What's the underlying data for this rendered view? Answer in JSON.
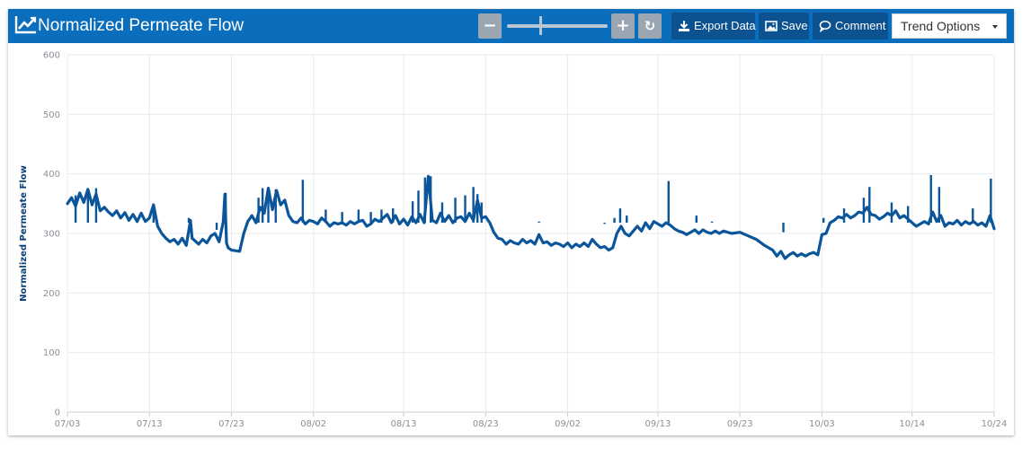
{
  "header": {
    "title": "Normalized Permeate Flow",
    "title_icon": "trend-chart-icon",
    "zoom_out_label": "−",
    "zoom_in_label": "+",
    "reset_label": "↻",
    "export_label": "Export Data",
    "save_label": "Save",
    "comment_label": "Comment",
    "trend_options_label": "Trend Options",
    "colors": {
      "header_bg": "#0a6ebd",
      "button_bg": "#0c5190",
      "button_disabled": "#9aa6b2"
    }
  },
  "chart_data": {
    "type": "line",
    "title": "Normalized Permeate Flow",
    "ylabel": "Normalized Permeate Flow",
    "xlabel": "",
    "ylim": [
      0,
      600
    ],
    "yticks": [
      0,
      100,
      200,
      300,
      400,
      500,
      600
    ],
    "grid": true,
    "legend": "none",
    "x_range_days": [
      0,
      113
    ],
    "x_tick_days": [
      0,
      10,
      20,
      30,
      41,
      51,
      61,
      72,
      82,
      92,
      103,
      113
    ],
    "x_tick_labels": [
      "07/03",
      "07/13",
      "07/23",
      "08/02",
      "08/13",
      "08/23",
      "09/02",
      "09/13",
      "09/23",
      "10/03",
      "10/14",
      "10/24"
    ],
    "series": [
      {
        "name": "Normalized Permeate Flow",
        "color": "#0b559a",
        "points": [
          [
            0,
            350
          ],
          [
            0.5,
            360
          ],
          [
            1,
            346
          ],
          [
            1.5,
            368
          ],
          [
            2,
            352
          ],
          [
            2.5,
            374
          ],
          [
            3,
            348
          ],
          [
            3.5,
            366
          ],
          [
            4,
            338
          ],
          [
            4.5,
            344
          ],
          [
            5,
            336
          ],
          [
            5.5,
            330
          ],
          [
            6,
            338
          ],
          [
            6.5,
            326
          ],
          [
            7,
            335
          ],
          [
            7.5,
            322
          ],
          [
            8,
            332
          ],
          [
            8.5,
            320
          ],
          [
            9,
            334
          ],
          [
            9.5,
            320
          ],
          [
            10,
            326
          ],
          [
            10.5,
            348
          ],
          [
            11,
            312
          ],
          [
            11.5,
            300
          ],
          [
            12,
            292
          ],
          [
            12.5,
            286
          ],
          [
            13,
            290
          ],
          [
            13.5,
            282
          ],
          [
            14,
            292
          ],
          [
            14.5,
            280
          ],
          [
            15,
            322
          ],
          [
            15.2,
            292
          ],
          [
            16,
            282
          ],
          [
            16.5,
            290
          ],
          [
            17,
            284
          ],
          [
            17.5,
            296
          ],
          [
            18,
            300
          ],
          [
            18.5,
            286
          ],
          [
            19,
            320
          ],
          [
            19.2,
            366
          ],
          [
            19.4,
            284
          ],
          [
            19.6,
            276
          ],
          [
            20,
            272
          ],
          [
            21,
            270
          ],
          [
            21.5,
            300
          ],
          [
            22,
            320
          ],
          [
            22.5,
            330
          ],
          [
            23,
            318
          ],
          [
            23.5,
            344
          ],
          [
            24,
            334
          ],
          [
            24.5,
            376
          ],
          [
            25,
            340
          ],
          [
            25.5,
            372
          ],
          [
            26,
            348
          ],
          [
            26.5,
            356
          ],
          [
            27,
            330
          ],
          [
            27.5,
            320
          ],
          [
            28,
            318
          ],
          [
            28.5,
            326
          ],
          [
            29,
            316
          ],
          [
            29.5,
            322
          ],
          [
            30,
            320
          ],
          [
            30.5,
            316
          ],
          [
            31,
            326
          ],
          [
            31.5,
            320
          ],
          [
            32,
            312
          ],
          [
            32.5,
            318
          ],
          [
            33,
            316
          ],
          [
            33.5,
            318
          ],
          [
            34,
            314
          ],
          [
            34.5,
            320
          ],
          [
            35,
            316
          ],
          [
            35.5,
            320
          ],
          [
            36,
            322
          ],
          [
            36.5,
            312
          ],
          [
            37,
            316
          ],
          [
            37.5,
            324
          ],
          [
            38,
            320
          ],
          [
            38.5,
            326
          ],
          [
            39,
            332
          ],
          [
            39.5,
            318
          ],
          [
            40,
            330
          ],
          [
            40.5,
            316
          ],
          [
            41,
            324
          ],
          [
            41.5,
            314
          ],
          [
            42,
            328
          ],
          [
            42.5,
            318
          ],
          [
            43,
            332
          ],
          [
            43.5,
            318
          ],
          [
            44,
            396
          ],
          [
            44.5,
            322
          ],
          [
            45,
            318
          ],
          [
            45.5,
            334
          ],
          [
            46,
            320
          ],
          [
            46.5,
            330
          ],
          [
            47,
            318
          ],
          [
            47.5,
            326
          ],
          [
            48,
            328
          ],
          [
            48.5,
            320
          ],
          [
            49,
            334
          ],
          [
            49.5,
            322
          ],
          [
            50,
            356
          ],
          [
            50.5,
            326
          ],
          [
            51,
            328
          ],
          [
            51.5,
            318
          ],
          [
            52,
            302
          ],
          [
            52.5,
            292
          ],
          [
            53,
            290
          ],
          [
            53.5,
            282
          ],
          [
            54,
            288
          ],
          [
            54.5,
            284
          ],
          [
            55,
            282
          ],
          [
            55.5,
            290
          ],
          [
            56,
            284
          ],
          [
            56.5,
            288
          ],
          [
            57,
            282
          ],
          [
            57.5,
            298
          ],
          [
            58,
            284
          ],
          [
            58.5,
            286
          ],
          [
            59,
            280
          ],
          [
            59.5,
            284
          ],
          [
            60,
            282
          ],
          [
            60.5,
            278
          ],
          [
            61,
            284
          ],
          [
            61.5,
            276
          ],
          [
            62,
            282
          ],
          [
            62.5,
            278
          ],
          [
            63,
            284
          ],
          [
            63.5,
            278
          ],
          [
            64,
            290
          ],
          [
            64.5,
            282
          ],
          [
            65,
            276
          ],
          [
            65.5,
            278
          ],
          [
            66,
            272
          ],
          [
            66.5,
            276
          ],
          [
            67,
            300
          ],
          [
            67.5,
            312
          ],
          [
            68,
            300
          ],
          [
            68.5,
            296
          ],
          [
            69,
            304
          ],
          [
            69.5,
            312
          ],
          [
            70,
            304
          ],
          [
            70.5,
            318
          ],
          [
            71,
            308
          ],
          [
            71.5,
            320
          ],
          [
            72,
            316
          ],
          [
            72.5,
            312
          ],
          [
            73,
            318
          ],
          [
            73.5,
            314
          ],
          [
            74,
            308
          ],
          [
            74.5,
            304
          ],
          [
            75,
            302
          ],
          [
            75.5,
            298
          ],
          [
            76,
            302
          ],
          [
            76.5,
            306
          ],
          [
            77,
            300
          ],
          [
            77.5,
            306
          ],
          [
            78,
            302
          ],
          [
            78.5,
            300
          ],
          [
            79,
            304
          ],
          [
            79.5,
            300
          ],
          [
            80,
            304
          ],
          [
            81,
            300
          ],
          [
            82,
            302
          ],
          [
            83,
            296
          ],
          [
            84,
            290
          ],
          [
            85,
            280
          ],
          [
            86,
            272
          ],
          [
            86.5,
            262
          ],
          [
            87,
            270
          ],
          [
            87.5,
            258
          ],
          [
            88,
            264
          ],
          [
            88.5,
            268
          ],
          [
            89,
            262
          ],
          [
            89.5,
            266
          ],
          [
            90,
            262
          ],
          [
            90.5,
            266
          ],
          [
            91,
            268
          ],
          [
            91.5,
            264
          ],
          [
            92,
            298
          ],
          [
            92.5,
            300
          ],
          [
            93,
            318
          ],
          [
            93.5,
            322
          ],
          [
            94,
            328
          ],
          [
            94.5,
            326
          ],
          [
            95,
            332
          ],
          [
            95.5,
            326
          ],
          [
            96,
            330
          ],
          [
            96.5,
            336
          ],
          [
            97,
            334
          ],
          [
            97.5,
            344
          ],
          [
            98,
            332
          ],
          [
            98.5,
            330
          ],
          [
            99,
            324
          ],
          [
            99.5,
            328
          ],
          [
            100,
            334
          ],
          [
            100.5,
            330
          ],
          [
            101,
            338
          ],
          [
            101.5,
            326
          ],
          [
            102,
            330
          ],
          [
            102.5,
            324
          ],
          [
            103,
            318
          ],
          [
            103.5,
            312
          ],
          [
            104,
            316
          ],
          [
            104.5,
            320
          ],
          [
            105,
            316
          ],
          [
            105.5,
            336
          ],
          [
            106,
            320
          ],
          [
            106.5,
            330
          ],
          [
            107,
            312
          ],
          [
            107.5,
            318
          ],
          [
            108,
            316
          ],
          [
            108.5,
            322
          ],
          [
            109,
            314
          ],
          [
            109.5,
            320
          ],
          [
            110,
            316
          ],
          [
            110.5,
            320
          ],
          [
            111,
            314
          ],
          [
            111.5,
            318
          ],
          [
            112,
            312
          ],
          [
            112.5,
            330
          ],
          [
            113,
            308
          ]
        ],
        "spikes": [
          [
            1,
            364
          ],
          [
            2.5,
            372
          ],
          [
            3.5,
            376
          ],
          [
            10.5,
            350
          ],
          [
            14.8,
            326
          ],
          [
            18.2,
            306
          ],
          [
            19.3,
            368
          ],
          [
            23.3,
            360
          ],
          [
            23.8,
            376
          ],
          [
            24.5,
            376
          ],
          [
            25.4,
            374
          ],
          [
            28.7,
            390
          ],
          [
            31.5,
            340
          ],
          [
            33.5,
            336
          ],
          [
            35.5,
            340
          ],
          [
            37,
            336
          ],
          [
            38.3,
            340
          ],
          [
            39.7,
            342
          ],
          [
            42.1,
            354
          ],
          [
            42.8,
            372
          ],
          [
            43.6,
            394
          ],
          [
            44.3,
            396
          ],
          [
            45.7,
            352
          ],
          [
            47.3,
            360
          ],
          [
            48.5,
            364
          ],
          [
            49.5,
            378
          ],
          [
            50,
            366
          ],
          [
            50.5,
            352
          ],
          [
            57.5,
            320
          ],
          [
            65.5,
            316
          ],
          [
            66.7,
            326
          ],
          [
            67.4,
            342
          ],
          [
            68.2,
            330
          ],
          [
            73.3,
            388
          ],
          [
            76.7,
            330
          ],
          [
            78.6,
            320
          ],
          [
            87.3,
            302
          ],
          [
            92.2,
            326
          ],
          [
            94.7,
            342
          ],
          [
            97.1,
            360
          ],
          [
            97.8,
            378
          ],
          [
            100.5,
            352
          ],
          [
            102.5,
            346
          ],
          [
            105.3,
            398
          ],
          [
            106.3,
            378
          ],
          [
            110.4,
            342
          ],
          [
            112.6,
            392
          ]
        ]
      }
    ]
  }
}
